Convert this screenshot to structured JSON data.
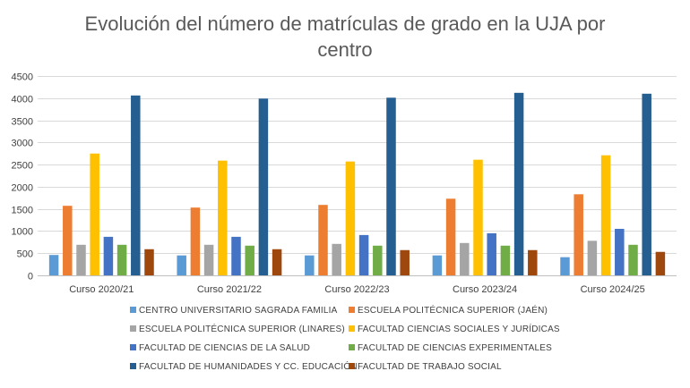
{
  "chart_data": {
    "type": "bar",
    "title": "Evolución del número de matrículas de grado en la UJA por centro",
    "title_lines": [
      "Evolución del número de matrículas de grado en la UJA por",
      "centro"
    ],
    "categories": [
      "Curso 2020/21",
      "Curso 2021/22",
      "Curso 2022/23",
      "Curso 2023/24",
      "Curso 2024/25"
    ],
    "ylim": [
      0,
      4500
    ],
    "yticks": [
      0,
      500,
      1000,
      1500,
      2000,
      2500,
      3000,
      3500,
      4000,
      4500
    ],
    "ytick_labels": [
      "0",
      "500",
      "1000",
      "1500",
      "2000",
      "2500",
      "3000",
      "3500",
      "4000",
      "4500"
    ],
    "xlabel": "",
    "ylabel": "",
    "grid": true,
    "legend_position": "bottom",
    "series": [
      {
        "name": "CENTRO UNIVERSITARIO SAGRADA FAMILIA",
        "color": "#5B9BD5",
        "values": [
          460,
          450,
          450,
          450,
          410
        ]
      },
      {
        "name": "ESCUELA POLITÉCNICA SUPERIOR (JAÉN)",
        "color": "#ED7D31",
        "values": [
          1570,
          1530,
          1590,
          1730,
          1830
        ]
      },
      {
        "name": "ESCUELA POLITÉCNICA SUPERIOR (LINARES)",
        "color": "#A5A5A5",
        "values": [
          690,
          690,
          710,
          730,
          780
        ]
      },
      {
        "name": "FACULTAD CIENCIAS SOCIALES Y JURÍDICAS",
        "color": "#FFC000",
        "values": [
          2750,
          2590,
          2570,
          2610,
          2710
        ]
      },
      {
        "name": "FACULTAD DE CIENCIAS DE LA SALUD",
        "color": "#4472C4",
        "values": [
          870,
          870,
          910,
          950,
          1050
        ]
      },
      {
        "name": "FACULTAD DE CIENCIAS EXPERIMENTALES",
        "color": "#70AD47",
        "values": [
          690,
          670,
          670,
          670,
          690
        ]
      },
      {
        "name": "FACULTAD DE HUMANIDADES Y CC. EDUCACIÓN",
        "color": "#255E91",
        "values": [
          4060,
          3990,
          4010,
          4120,
          4100
        ]
      },
      {
        "name": "FACULTAD DE TRABAJO SOCIAL",
        "color": "#9E480E",
        "values": [
          590,
          590,
          570,
          570,
          530
        ]
      }
    ]
  }
}
